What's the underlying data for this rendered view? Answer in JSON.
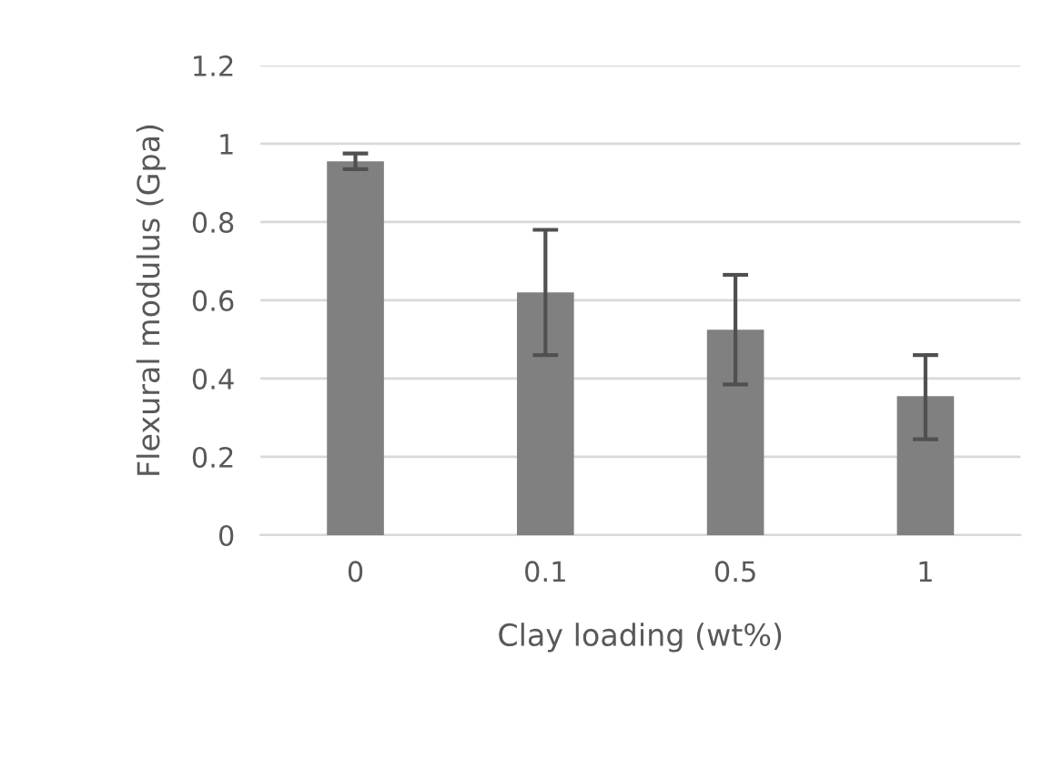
{
  "chart_data": {
    "type": "bar",
    "xlabel": "Clay loading (wt%)",
    "ylabel": "Flexural modulus (Gpa)",
    "categories": [
      "0",
      "0.1",
      "0.5",
      "1"
    ],
    "values": [
      0.955,
      0.62,
      0.525,
      0.355
    ],
    "errors": [
      [
        0.935,
        0.975
      ],
      [
        0.46,
        0.78
      ],
      [
        0.385,
        0.665
      ],
      [
        0.245,
        0.46
      ]
    ],
    "color": "#808080",
    "ylim": [
      0,
      1.2
    ],
    "yticks": [
      0,
      0.2,
      0.4,
      0.6,
      0.8,
      1,
      1.2
    ],
    "grid": "y",
    "legend": false
  }
}
